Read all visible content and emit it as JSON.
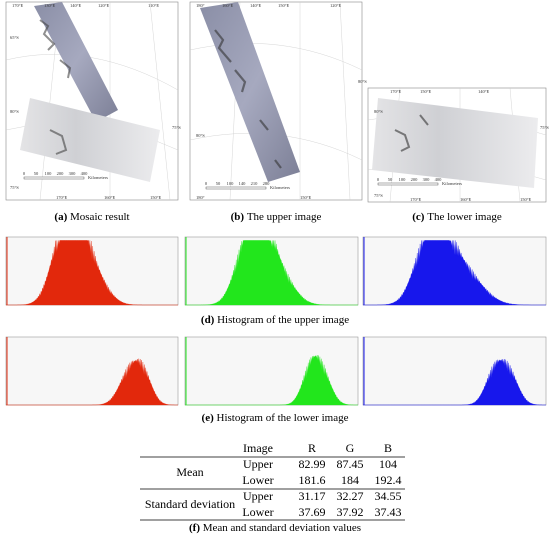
{
  "panels": [
    {
      "label": "(a)",
      "caption": "Mosaic result",
      "map_labels": [
        "170°E",
        "130°E",
        "140°E",
        "120°E",
        "110°E",
        "65°S",
        "80°S",
        "75°S",
        "75°S",
        "170°E",
        "160°E",
        "150°E"
      ],
      "scale": [
        0,
        50,
        100,
        200,
        300,
        400
      ],
      "scale_unit": "Kilometers"
    },
    {
      "label": "(b)",
      "caption": "The upper image",
      "map_labels": [
        "180°",
        "160°E",
        "140°E",
        "150°E",
        "120°E",
        "80°S",
        "80°S",
        "180°",
        "150°E"
      ],
      "scale": [
        0,
        50,
        100,
        140,
        210,
        280
      ],
      "scale_unit": "Kilometers"
    },
    {
      "label": "(c)",
      "caption": "The lower image",
      "map_labels": [
        "170°E",
        "150°E",
        "140°E",
        "80°S",
        "75°S",
        "75°S",
        "170°E",
        "160°E",
        "150°E"
      ],
      "scale": [
        0,
        50,
        100,
        200,
        300,
        400
      ],
      "scale_unit": "Kilometers"
    }
  ],
  "histograms": [
    {
      "label": "(d)",
      "caption": "Histogram of the upper image"
    },
    {
      "label": "(e)",
      "caption": "Histogram of the lower image"
    }
  ],
  "table": {
    "header": [
      "Image",
      "R",
      "G",
      "B"
    ],
    "groups": [
      {
        "name": "Mean",
        "rows": [
          [
            "Upper",
            82.99,
            87.45,
            104
          ],
          [
            "Lower",
            181.6,
            184,
            192.4
          ]
        ]
      },
      {
        "name": "Standard deviation",
        "rows": [
          [
            "Upper",
            31.17,
            32.27,
            34.55
          ],
          [
            "Lower",
            37.69,
            37.92,
            37.43
          ]
        ]
      }
    ],
    "label": "(f)",
    "caption": "Mean and standard deviation values"
  }
}
